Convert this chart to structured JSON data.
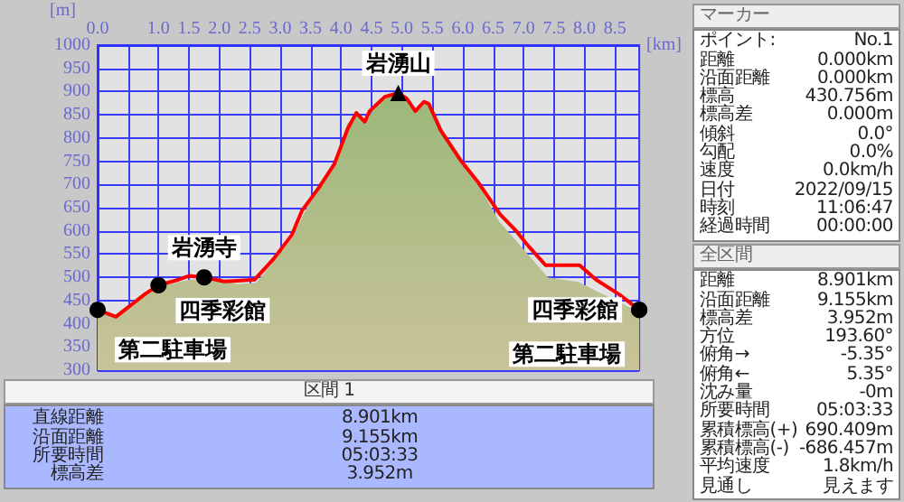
{
  "chart_data": [
    {
      "type": "line",
      "xlabel": "[km]",
      "ylabel": "[m]",
      "xlim": [
        0,
        8.9
      ],
      "ylim": [
        300,
        1000
      ],
      "xticks": [
        {
          "value": 0,
          "label": "0.0"
        },
        {
          "value": 0.5,
          "label": null
        },
        {
          "value": 1,
          "label": "1.0"
        },
        1.5,
        {
          "value": 2,
          "label": "2.0"
        },
        2.5,
        {
          "value": 3,
          "label": "3.0"
        },
        3.5,
        {
          "value": 4,
          "label": "4.0"
        },
        4.5,
        {
          "value": 5,
          "label": "5.0"
        },
        5.5,
        {
          "value": 6,
          "label": "6.0"
        },
        6.5,
        {
          "value": 7,
          "label": "7.0"
        },
        7.5,
        {
          "value": 8,
          "label": "8.0"
        },
        8.5
      ],
      "yticks": [
        300,
        350,
        400,
        450,
        500,
        550,
        600,
        650,
        700,
        750,
        800,
        850,
        900,
        950,
        1000
      ],
      "grid": true,
      "marker": "none",
      "series": [
        {
          "type": "area",
          "color": "#9cb87a",
          "x": [
            0,
            0.3,
            0.8,
            1.0,
            1.5,
            2.0,
            2.3,
            2.6,
            2.9,
            3.2,
            3.4,
            3.6,
            3.9,
            4.1,
            4.25,
            4.4,
            4.5,
            4.7,
            4.95,
            5.1,
            5.2,
            5.35,
            5.45,
            5.65,
            6.0,
            6.3,
            6.6,
            6.9,
            7.1,
            7.4,
            7.9,
            8.2,
            8.6,
            8.9
          ],
          "values": [
            430,
            420,
            462,
            480,
            495,
            495,
            485,
            488,
            535,
            585,
            640,
            690,
            740,
            830,
            850,
            830,
            855,
            885,
            895,
            880,
            855,
            875,
            870,
            810,
            740,
            690,
            620,
            575,
            545,
            500,
            490,
            470,
            445,
            425
          ]
        },
        {
          "type": "line",
          "color": "#ff0000",
          "x": [
            0,
            0.3,
            0.78,
            1.0,
            1.33,
            1.5,
            1.75,
            2.08,
            2.58,
            2.9,
            3.19,
            3.36,
            3.64,
            3.89,
            4.11,
            4.25,
            4.39,
            4.47,
            4.72,
            4.94,
            5.08,
            5.22,
            5.36,
            5.44,
            5.64,
            5.97,
            6.25,
            6.61,
            6.89,
            7.08,
            7.36,
            7.92,
            8.19,
            8.56,
            8.9
          ],
          "values": [
            430,
            415,
            464,
            483,
            495,
            503,
            500,
            491,
            495,
            541,
            591,
            644,
            694,
            744,
            820,
            854,
            835,
            858,
            889,
            897,
            885,
            858,
            878,
            874,
            816,
            751,
            705,
            636,
            598,
            567,
            526,
            526,
            495,
            464,
            430
          ]
        }
      ],
      "annotations": [
        {
          "text": "第二駐車場",
          "x": 0,
          "y": 430
        },
        {
          "text": "四季彩館",
          "x": 1.0,
          "y": 483
        },
        {
          "text": "岩湧寺",
          "x": 1.75,
          "y": 500
        },
        {
          "text": "岩湧山",
          "x": 4.94,
          "y": 897
        },
        {
          "text": "四季彩館",
          "x": 8.9,
          "y": 430
        },
        {
          "text": "第二駐車場",
          "x": 8.9,
          "y": 430
        }
      ]
    },
    {
      "type": "other",
      "title": "区間 1",
      "annotations": [
        "直線距離",
        "8.901km",
        "沿面距離",
        "9.155km",
        "所要時間",
        "05:03:33",
        "標高差",
        "3.952m"
      ]
    },
    {
      "type": "other",
      "title": "マーカー",
      "annotations": [
        "ポイント:",
        "No.1",
        "距離",
        "0.000km",
        "沿面距離",
        "0.000km",
        "標高",
        "430.756m",
        "標高差",
        "0.000m",
        "傾斜",
        "0.0°",
        "勾配",
        "0.0%",
        "速度",
        "0.0km/h",
        "日付",
        "2022/09/15",
        "時刻",
        "11:06:47",
        "経過時間",
        "00:00:00"
      ]
    },
    {
      "type": "other",
      "title": "全区間",
      "annotations": [
        "距離",
        "8.901km",
        "沿面距離",
        "9.155km",
        "標高差",
        "3.952m",
        "方位",
        "193.60°",
        "俯角→",
        "-5.35°",
        "俯角←",
        "5.35°",
        "沈み量",
        "-0m",
        "所要時間",
        "05:03:33",
        "累積標高(+)",
        "690.409m",
        "累積標高(-)",
        "-686.457m",
        "平均速度",
        "1.8km/h",
        "見通し",
        "見えます"
      ]
    }
  ]
}
